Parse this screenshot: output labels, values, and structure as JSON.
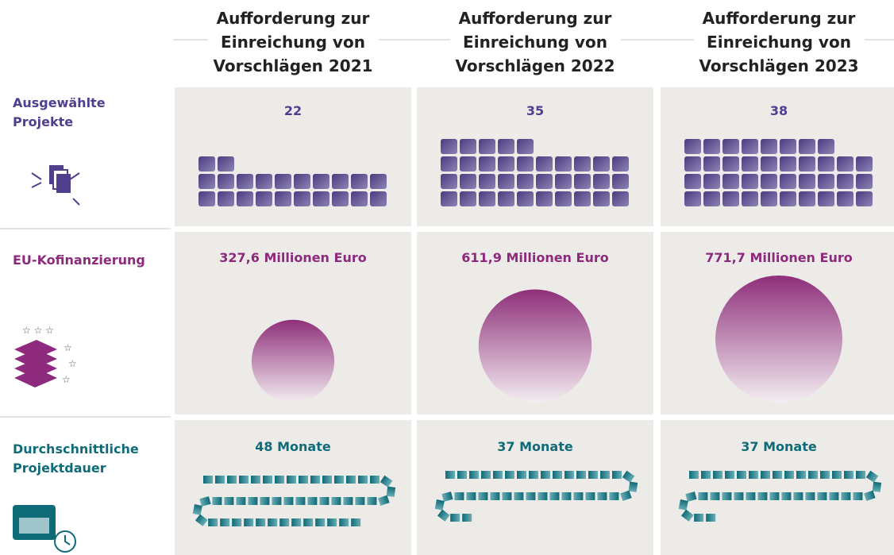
{
  "columns": [
    {
      "title": "Aufforderung zur Einreichung von Vorschlägen 2021"
    },
    {
      "title": "Aufforderung zur Einreichung von Vorschlägen 2022"
    },
    {
      "title": "Aufforderung zur Einreichung von Vorschlägen 2023"
    }
  ],
  "rows": [
    {
      "label": "Ausgewählte Projekte",
      "color": "#4f3f8c",
      "cells": [
        {
          "label": "22",
          "value": 22
        },
        {
          "label": "35",
          "value": 35
        },
        {
          "label": "38",
          "value": 38
        }
      ]
    },
    {
      "label": "EU-Kofinanzierung",
      "color": "#8e2a7d",
      "cells": [
        {
          "label": "327,6 Millionen Euro",
          "value": 327.6
        },
        {
          "label": "611,9 Millionen Euro",
          "value": 611.9
        },
        {
          "label": "771,7 Millionen Euro",
          "value": 771.7
        }
      ]
    },
    {
      "label": "Durchschnittliche Projektdauer",
      "color": "#0f6b78",
      "cells": [
        {
          "label": "48 Monate",
          "value": 48
        },
        {
          "label": "37 Monate",
          "value": 37
        },
        {
          "label": "37 Monate",
          "value": 37
        }
      ]
    }
  ]
}
